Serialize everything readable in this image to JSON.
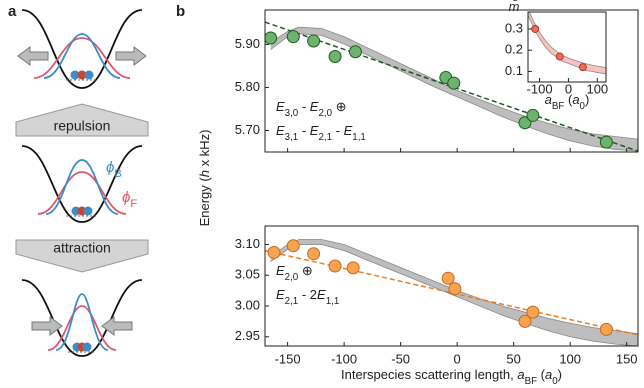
{
  "figure": {
    "panel_labels": [
      "a",
      "b"
    ],
    "repulsion": "repulsion",
    "attraction": "attraction",
    "phi_b": [
      {
        "text": "ϕ",
        "italic": true
      },
      {
        "text": "B",
        "sub": true
      }
    ],
    "phi_f": [
      {
        "text": "ϕ",
        "italic": true
      },
      {
        "text": "F",
        "sub": true
      }
    ]
  },
  "chart_data": [
    {
      "type": "scatter",
      "y_label": [
        {
          "text": "Energy ("
        },
        {
          "text": "h",
          "italic": true
        },
        {
          "text": " x kHz)"
        }
      ],
      "annotation_lines": [
        [
          {
            "text": "E",
            "italic": true
          },
          {
            "text": "3,0",
            "sub": true
          },
          {
            "text": " - "
          },
          {
            "text": "E",
            "italic": true
          },
          {
            "text": "2,0",
            "sub": true
          },
          {
            "text": " ⊕"
          }
        ],
        [
          {
            "text": "E",
            "italic": true
          },
          {
            "text": "3,1",
            "sub": true
          },
          {
            "text": " - "
          },
          {
            "text": "E",
            "italic": true
          },
          {
            "text": "2,1",
            "sub": true
          },
          {
            "text": " - "
          },
          {
            "text": "E",
            "italic": true
          },
          {
            "text": "1,1",
            "sub": true
          }
        ]
      ],
      "x": [
        -165,
        -145,
        -127,
        -108,
        -90,
        -10,
        -3,
        60,
        67,
        132
      ],
      "values": [
        5.915,
        5.918,
        5.908,
        5.872,
        5.883,
        5.823,
        5.81,
        5.718,
        5.735,
        5.673
      ],
      "color": "#6db36d",
      "edge_color": "#1f5a25",
      "fit": {
        "x": [
          -170,
          160
        ],
        "y": [
          5.952,
          5.652
        ],
        "color": "#1f5a25"
      },
      "band": {
        "x": [
          -165,
          -150,
          -140,
          -120,
          -100,
          -80,
          -60,
          -40,
          -20,
          0,
          20,
          40,
          60,
          80,
          100,
          120,
          140,
          160
        ],
        "upper": [
          5.905,
          5.93,
          5.94,
          5.937,
          5.918,
          5.893,
          5.868,
          5.843,
          5.818,
          5.793,
          5.772,
          5.752,
          5.733,
          5.717,
          5.703,
          5.692,
          5.686,
          5.68
        ],
        "lower": [
          5.888,
          5.918,
          5.925,
          5.921,
          5.901,
          5.876,
          5.851,
          5.826,
          5.801,
          5.778,
          5.755,
          5.732,
          5.711,
          5.692,
          5.676,
          5.664,
          5.656,
          5.652
        ],
        "color": "#bdbdbd"
      },
      "xlim": [
        -170,
        160
      ],
      "ylim": [
        5.65,
        5.98
      ],
      "xticks": [
        -150,
        -100,
        -50,
        0,
        50,
        100,
        150
      ],
      "yticks": [
        {
          "value": 5.7,
          "label": "5.70"
        },
        {
          "value": 5.8,
          "label": "5.80"
        },
        {
          "value": 5.9,
          "label": "5.90"
        }
      ]
    },
    {
      "type": "scatter",
      "x_label": [
        {
          "text": "Interspecies scattering length, "
        },
        {
          "text": "a",
          "italic": true
        },
        {
          "text": "BF",
          "sub": true
        },
        {
          "text": " ("
        },
        {
          "text": "a",
          "italic": true
        },
        {
          "text": "0",
          "sub": true
        },
        {
          "text": ")"
        }
      ],
      "annotation_lines": [
        [
          {
            "text": "E",
            "italic": true
          },
          {
            "text": "2,0",
            "sub": true
          },
          {
            "text": " ⊕"
          }
        ],
        [
          {
            "text": "E",
            "italic": true
          },
          {
            "text": "2,1",
            "sub": true
          },
          {
            "text": " - 2"
          },
          {
            "text": "E",
            "italic": true
          },
          {
            "text": "1,1",
            "sub": true
          }
        ]
      ],
      "x": [
        -162,
        -145,
        -127,
        -108,
        -92,
        -8,
        -2,
        60,
        67,
        132
      ],
      "values": [
        3.087,
        3.098,
        3.085,
        3.065,
        3.062,
        3.045,
        3.028,
        2.975,
        2.99,
        2.962
      ],
      "color": "#f6a451",
      "edge_color": "#c9681e",
      "fit": {
        "x": [
          -170,
          160
        ],
        "y": [
          3.09,
          2.953
        ],
        "color": "#ef7d1f"
      },
      "band": {
        "x": [
          -165,
          -150,
          -140,
          -120,
          -100,
          -80,
          -60,
          -40,
          -20,
          0,
          20,
          40,
          60,
          80,
          100,
          120,
          140,
          160
        ],
        "upper": [
          3.08,
          3.1,
          3.108,
          3.108,
          3.1,
          3.085,
          3.07,
          3.055,
          3.04,
          3.025,
          3.012,
          3.0,
          2.99,
          2.98,
          2.972,
          2.965,
          2.96,
          2.955
        ],
        "lower": [
          3.072,
          3.092,
          3.1,
          3.1,
          3.09,
          3.075,
          3.06,
          3.045,
          3.03,
          3.015,
          3.0,
          2.985,
          2.972,
          2.96,
          2.95,
          2.943,
          2.938,
          2.935
        ],
        "color": "#bdbdbd"
      },
      "xlim": [
        -170,
        160
      ],
      "ylim": [
        2.935,
        3.13
      ],
      "xticks": [
        -150,
        -100,
        -50,
        0,
        50,
        100,
        150
      ],
      "yticks": [
        {
          "value": 2.95,
          "label": "2.95"
        },
        {
          "value": 3.0,
          "label": "3.00"
        },
        {
          "value": 3.05,
          "label": "3.05"
        },
        {
          "value": 3.1,
          "label": "3.10"
        }
      ]
    },
    {
      "type": "scatter",
      "y_label": [
        {
          "text": "m̄",
          "italic": true
        }
      ],
      "x_label": [
        {
          "text": "a",
          "italic": true
        },
        {
          "text": "BF",
          "sub": true
        },
        {
          "text": " ("
        },
        {
          "text": "a",
          "italic": true
        },
        {
          "text": "0",
          "sub": true
        },
        {
          "text": ")"
        }
      ],
      "x": [
        -115,
        -30,
        50
      ],
      "values": [
        0.3,
        0.17,
        0.12
      ],
      "color": "#ef6b5e",
      "edge_color": "#b5332a",
      "band": {
        "x": [
          -140,
          -120,
          -100,
          -80,
          -60,
          -40,
          -20,
          0,
          20,
          40,
          60,
          80,
          100,
          120,
          130
        ],
        "upper": [
          0.395,
          0.335,
          0.285,
          0.245,
          0.215,
          0.193,
          0.175,
          0.163,
          0.153,
          0.144,
          0.136,
          0.13,
          0.125,
          0.12,
          0.118
        ],
        "lower": [
          0.365,
          0.305,
          0.255,
          0.215,
          0.185,
          0.167,
          0.147,
          0.137,
          0.127,
          0.116,
          0.104,
          0.1,
          0.095,
          0.09,
          0.088
        ],
        "color": "#f7c3bd"
      },
      "xlim": [
        -140,
        130
      ],
      "ylim": [
        0.05,
        0.38
      ],
      "xticks": [
        -100,
        0,
        100
      ],
      "yticks": [
        0.1,
        0.2,
        0.3
      ]
    }
  ]
}
